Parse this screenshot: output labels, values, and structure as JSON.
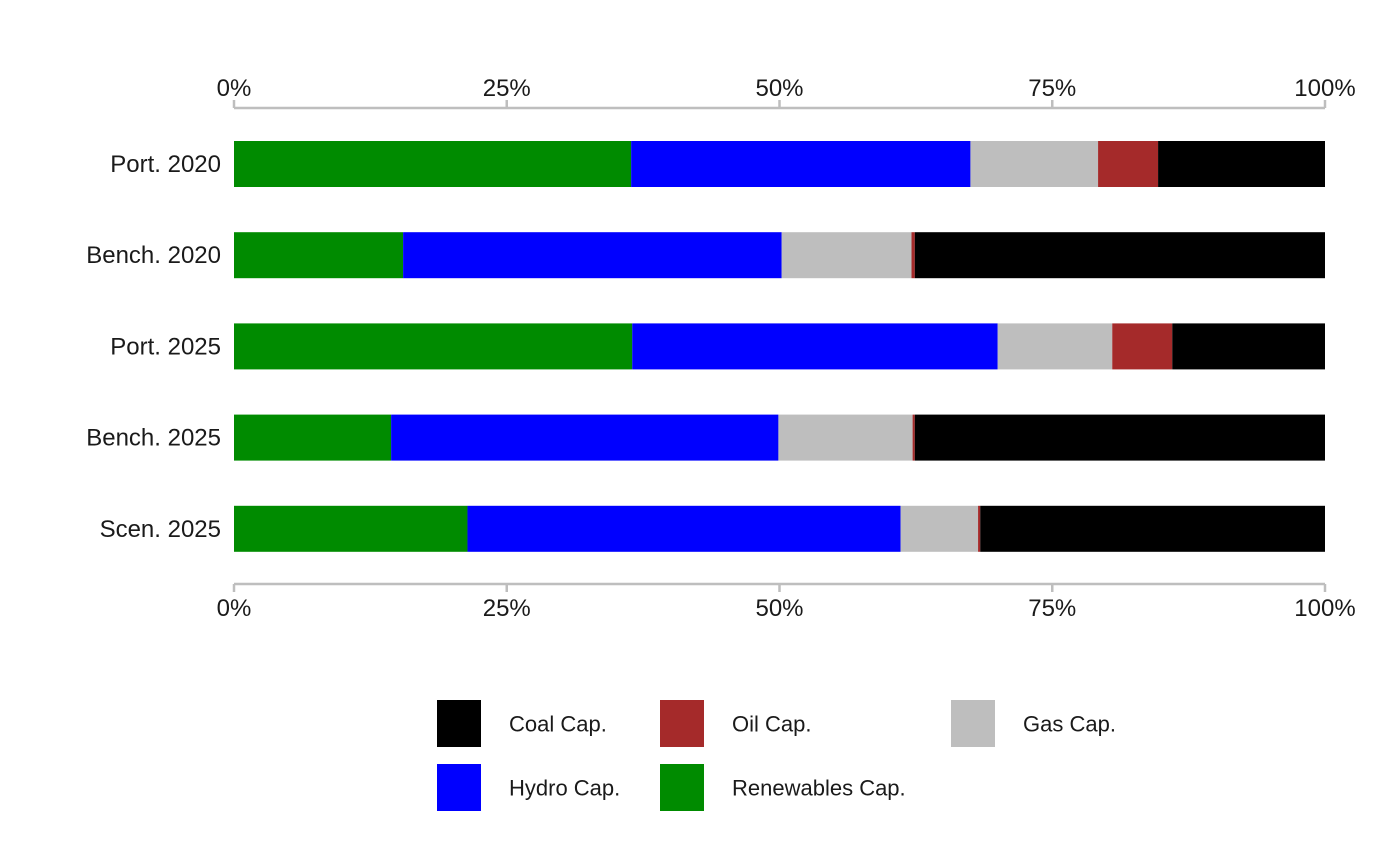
{
  "chart_data": {
    "type": "bar",
    "orientation": "horizontal",
    "stacked": true,
    "percent": true,
    "title": "",
    "xlabel": "",
    "ylabel": "",
    "xlim": [
      0,
      100
    ],
    "x_ticks": [
      "0%",
      "25%",
      "50%",
      "75%",
      "100%"
    ],
    "x_tick_values": [
      0,
      25,
      50,
      75,
      100
    ],
    "axis_position": "top-and-bottom",
    "grid": false,
    "legend_position": "bottom",
    "categories": [
      "Port. 2020",
      "Bench. 2020",
      "Port. 2025",
      "Bench. 2025",
      "Scen. 2025"
    ],
    "series": [
      {
        "name": "Renewables Cap.",
        "color": "#008B00",
        "values": [
          36.4,
          15.5,
          36.5,
          14.4,
          21.4
        ]
      },
      {
        "name": "Hydro Cap.",
        "color": "#0000FF",
        "values": [
          31.1,
          34.7,
          33.5,
          35.5,
          39.7
        ]
      },
      {
        "name": "Gas Cap.",
        "color": "#BEBEBE",
        "values": [
          11.7,
          11.9,
          10.5,
          12.3,
          7.1
        ]
      },
      {
        "name": "Oil Cap.",
        "color": "#A52A2A",
        "values": [
          5.5,
          0.3,
          5.5,
          0.2,
          0.2
        ]
      },
      {
        "name": "Coal Cap.",
        "color": "#000000",
        "values": [
          15.3,
          37.6,
          14.0,
          37.6,
          31.6
        ]
      }
    ],
    "legend_order": [
      "Coal Cap.",
      "Oil Cap.",
      "Gas Cap.",
      "Hydro Cap.",
      "Renewables Cap."
    ]
  }
}
